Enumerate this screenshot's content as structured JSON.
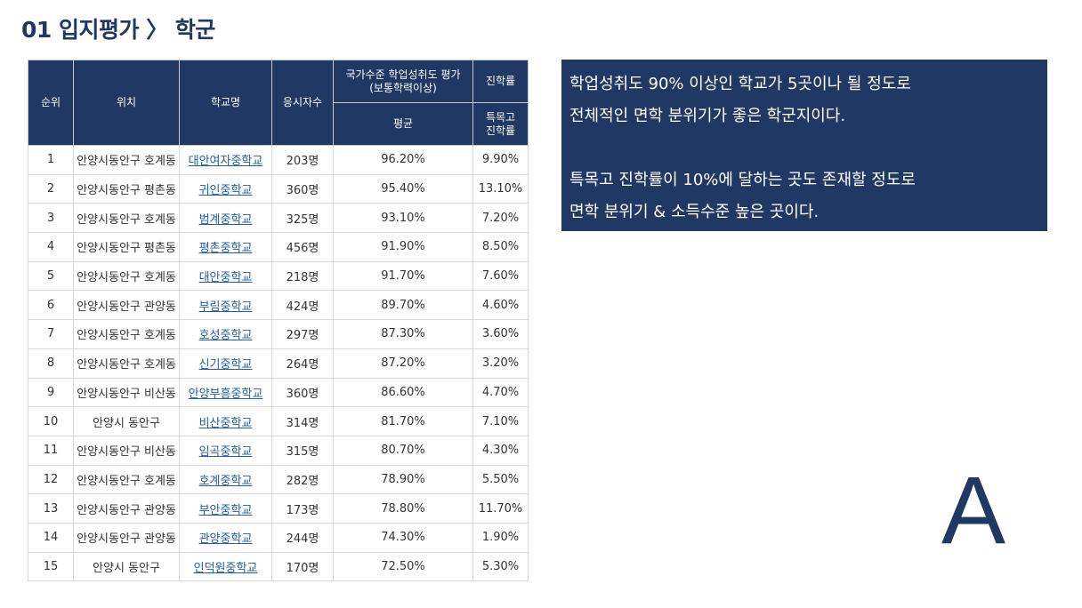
{
  "title": "01 입지평가 〉 학군",
  "table": {
    "headers": {
      "rank": "순위",
      "location": "위치",
      "school": "학교명",
      "examinees": "응시자수",
      "achievement_group": "국가수준 학업성취도 평가\n(보통학력이상)",
      "advancement_group": "진학률",
      "average": "평균",
      "special_rate": "특목고\n진학률"
    },
    "rows": [
      {
        "rank": "1",
        "location": "안양시동안구 호계동",
        "school": "대안여자중학교",
        "examinees": "203명",
        "average": "96.20%",
        "special": "9.90%"
      },
      {
        "rank": "2",
        "location": "안양시동안구 평촌동",
        "school": "귀인중학교",
        "examinees": "360명",
        "average": "95.40%",
        "special": "13.10%"
      },
      {
        "rank": "3",
        "location": "안양시동안구 호계동",
        "school": "범계중학교",
        "examinees": "325명",
        "average": "93.10%",
        "special": "7.20%"
      },
      {
        "rank": "4",
        "location": "안양시동안구 평촌동",
        "school": "평촌중학교",
        "examinees": "456명",
        "average": "91.90%",
        "special": "8.50%"
      },
      {
        "rank": "5",
        "location": "안양시동안구 호계동",
        "school": "대안중학교",
        "examinees": "218명",
        "average": "91.70%",
        "special": "7.60%"
      },
      {
        "rank": "6",
        "location": "안양시동안구 관양동",
        "school": "부림중학교",
        "examinees": "424명",
        "average": "89.70%",
        "special": "4.60%"
      },
      {
        "rank": "7",
        "location": "안양시동안구 호계동",
        "school": "호성중학교",
        "examinees": "297명",
        "average": "87.30%",
        "special": "3.60%"
      },
      {
        "rank": "8",
        "location": "안양시동안구 호계동",
        "school": "신기중학교",
        "examinees": "264명",
        "average": "87.20%",
        "special": "3.20%"
      },
      {
        "rank": "9",
        "location": "안양시동안구 비산동",
        "school": "안양부흥중학교",
        "examinees": "360명",
        "average": "86.60%",
        "special": "4.70%"
      },
      {
        "rank": "10",
        "location": "안양시 동안구",
        "school": "비산중학교",
        "examinees": "314명",
        "average": "81.70%",
        "special": "7.10%"
      },
      {
        "rank": "11",
        "location": "안양시동안구 비산동",
        "school": "임곡중학교",
        "examinees": "315명",
        "average": "80.70%",
        "special": "4.30%"
      },
      {
        "rank": "12",
        "location": "안양시동안구 호계동",
        "school": "호계중학교",
        "examinees": "282명",
        "average": "78.90%",
        "special": "5.50%"
      },
      {
        "rank": "13",
        "location": "안양시동안구 관양동",
        "school": "부안중학교",
        "examinees": "173명",
        "average": "78.80%",
        "special": "11.70%"
      },
      {
        "rank": "14",
        "location": "안양시동안구 관양동",
        "school": "관양중학교",
        "examinees": "244명",
        "average": "74.30%",
        "special": "1.90%"
      },
      {
        "rank": "15",
        "location": "안양시 동안구",
        "school": "인덕원중학교",
        "examinees": "170명",
        "average": "72.50%",
        "special": "5.30%"
      }
    ]
  },
  "note": {
    "line1": "학업성취도 90% 이상인 학교가 5곳이나 될 정도로",
    "line2": "전체적인 면학 분위기가 좋은 학군지이다.",
    "line3": "특목고 진학률이 10%에 달하는 곳도 존재할 정도로",
    "line4": "면학 분위기 & 소득수준 높은 곳이다."
  },
  "grade": "A",
  "colors": {
    "navy": "#1f3864",
    "link": "#1f5fa8"
  }
}
